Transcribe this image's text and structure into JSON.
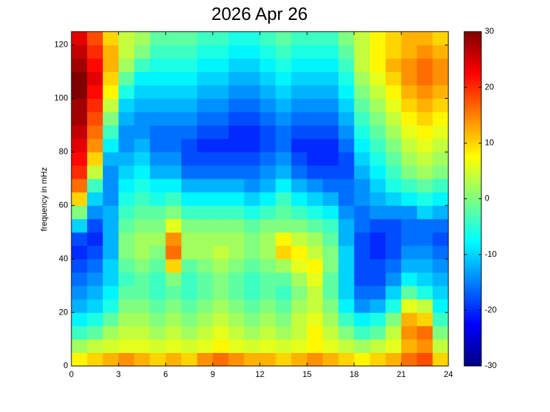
{
  "chart_data": {
    "type": "heatmap",
    "title": "2026 Apr 26",
    "y_label": "frequency in mHz",
    "xlim": [
      0,
      24
    ],
    "xticks": [
      0,
      3,
      6,
      9,
      12,
      15,
      18,
      21,
      24
    ],
    "ylim": [
      0,
      125
    ],
    "yticks": [
      0,
      20,
      40,
      60,
      80,
      100,
      120
    ],
    "colormap": "jet",
    "clim": [
      -30,
      30
    ],
    "cticks": [
      -30,
      -20,
      -10,
      0,
      10,
      20,
      30
    ],
    "z": [
      [
        8,
        10,
        12,
        14,
        12,
        10,
        12,
        10,
        14,
        16,
        14,
        12,
        12,
        10,
        12,
        14,
        12,
        10,
        8,
        10,
        12,
        16,
        18,
        10
      ],
      [
        2,
        4,
        5,
        6,
        6,
        5,
        6,
        5,
        6,
        8,
        6,
        5,
        6,
        5,
        6,
        8,
        6,
        4,
        2,
        4,
        6,
        12,
        14,
        4
      ],
      [
        -4,
        -2,
        2,
        4,
        4,
        2,
        4,
        2,
        4,
        6,
        4,
        2,
        4,
        2,
        4,
        8,
        4,
        0,
        -4,
        -2,
        4,
        14,
        16,
        0
      ],
      [
        -8,
        -6,
        -2,
        2,
        2,
        0,
        2,
        0,
        2,
        4,
        2,
        0,
        2,
        0,
        4,
        6,
        2,
        -4,
        -8,
        -6,
        0,
        12,
        10,
        -4
      ],
      [
        -12,
        -10,
        -6,
        0,
        0,
        -2,
        0,
        -2,
        0,
        2,
        0,
        -2,
        0,
        -2,
        2,
        4,
        0,
        -8,
        -14,
        -12,
        -6,
        6,
        4,
        -8
      ],
      [
        -14,
        -12,
        -8,
        -2,
        -2,
        -4,
        -2,
        -4,
        -2,
        0,
        -2,
        -4,
        -2,
        -4,
        0,
        4,
        -2,
        -10,
        -16,
        -16,
        -10,
        -2,
        -6,
        -10
      ],
      [
        -16,
        -14,
        -10,
        -4,
        -2,
        -4,
        0,
        -4,
        -2,
        0,
        -2,
        -4,
        -2,
        -2,
        2,
        6,
        -2,
        -10,
        -18,
        -18,
        -14,
        -8,
        -10,
        -12
      ],
      [
        -18,
        -16,
        -10,
        -2,
        0,
        -2,
        10,
        -2,
        0,
        2,
        0,
        -2,
        0,
        2,
        6,
        8,
        0,
        -10,
        -18,
        -18,
        -16,
        -12,
        -12,
        -14
      ],
      [
        -20,
        -18,
        -12,
        0,
        2,
        0,
        16,
        2,
        2,
        4,
        2,
        0,
        2,
        10,
        8,
        4,
        0,
        -10,
        -18,
        -20,
        -18,
        -14,
        -14,
        -16
      ],
      [
        -18,
        -20,
        -12,
        0,
        2,
        2,
        14,
        2,
        2,
        2,
        2,
        0,
        2,
        8,
        4,
        2,
        -2,
        -12,
        -18,
        -20,
        -18,
        -16,
        -16,
        -18
      ],
      [
        -10,
        -18,
        -12,
        -2,
        0,
        0,
        6,
        0,
        0,
        0,
        0,
        -2,
        0,
        0,
        0,
        -2,
        -4,
        -12,
        -16,
        -18,
        -18,
        -16,
        -16,
        -16
      ],
      [
        0,
        -14,
        -12,
        -4,
        -2,
        -2,
        0,
        -4,
        -4,
        -4,
        -4,
        -6,
        -4,
        -2,
        -4,
        -6,
        -8,
        -14,
        -16,
        -14,
        -14,
        -14,
        -10,
        -12
      ],
      [
        10,
        -10,
        -14,
        -6,
        -4,
        -6,
        -4,
        -8,
        -8,
        -8,
        -8,
        -10,
        -8,
        -4,
        -8,
        -10,
        -12,
        -16,
        -14,
        -12,
        -10,
        -8,
        -6,
        -8
      ],
      [
        16,
        -4,
        -14,
        -8,
        -6,
        -8,
        -8,
        -12,
        -12,
        -12,
        -12,
        -14,
        -12,
        -8,
        -12,
        -14,
        -16,
        -16,
        -14,
        -10,
        -6,
        -4,
        -2,
        -4
      ],
      [
        20,
        4,
        -14,
        -10,
        -8,
        -12,
        -12,
        -16,
        -16,
        -16,
        -16,
        -16,
        -14,
        -12,
        -16,
        -18,
        -18,
        -18,
        -12,
        -8,
        -4,
        0,
        2,
        0
      ],
      [
        22,
        10,
        -12,
        -12,
        -10,
        -14,
        -14,
        -18,
        -18,
        -18,
        -18,
        -18,
        -16,
        -14,
        -18,
        -20,
        -20,
        -18,
        -10,
        -6,
        -2,
        2,
        4,
        2
      ],
      [
        24,
        14,
        -8,
        -14,
        -12,
        -16,
        -16,
        -18,
        -20,
        -20,
        -20,
        -20,
        -18,
        -16,
        -20,
        -20,
        -20,
        -16,
        -8,
        -4,
        0,
        4,
        6,
        4
      ],
      [
        26,
        16,
        -4,
        -14,
        -14,
        -16,
        -16,
        -16,
        -18,
        -18,
        -20,
        -20,
        -18,
        -16,
        -18,
        -18,
        -18,
        -14,
        -6,
        -2,
        2,
        6,
        8,
        6
      ],
      [
        28,
        18,
        0,
        -12,
        -14,
        -14,
        -14,
        -14,
        -16,
        -16,
        -18,
        -18,
        -16,
        -14,
        -16,
        -16,
        -16,
        -12,
        -4,
        0,
        4,
        8,
        10,
        8
      ],
      [
        28,
        20,
        4,
        -10,
        -12,
        -12,
        -12,
        -12,
        -14,
        -14,
        -16,
        -16,
        -14,
        -12,
        -14,
        -14,
        -14,
        -10,
        -2,
        2,
        6,
        10,
        12,
        10
      ],
      [
        30,
        22,
        8,
        -6,
        -10,
        -10,
        -10,
        -10,
        -12,
        -12,
        -14,
        -14,
        -12,
        -10,
        -12,
        -12,
        -12,
        -8,
        0,
        4,
        8,
        12,
        14,
        12
      ],
      [
        30,
        24,
        10,
        -2,
        -8,
        -8,
        -8,
        -8,
        -10,
        -10,
        -12,
        -12,
        -10,
        -8,
        -10,
        -10,
        -10,
        -6,
        2,
        6,
        10,
        14,
        16,
        14
      ],
      [
        28,
        22,
        12,
        2,
        -4,
        -6,
        -6,
        -6,
        -8,
        -8,
        -10,
        -10,
        -8,
        -6,
        -8,
        -8,
        -8,
        -4,
        4,
        8,
        12,
        14,
        16,
        14
      ],
      [
        26,
        20,
        12,
        4,
        0,
        -4,
        -4,
        -4,
        -6,
        -6,
        -8,
        -8,
        -6,
        -4,
        -6,
        -6,
        -6,
        -2,
        4,
        8,
        10,
        12,
        14,
        12
      ],
      [
        24,
        18,
        10,
        4,
        2,
        -2,
        -2,
        -2,
        -4,
        -4,
        -6,
        -6,
        -4,
        -2,
        -4,
        -4,
        -4,
        0,
        4,
        8,
        10,
        12,
        12,
        10
      ]
    ]
  }
}
